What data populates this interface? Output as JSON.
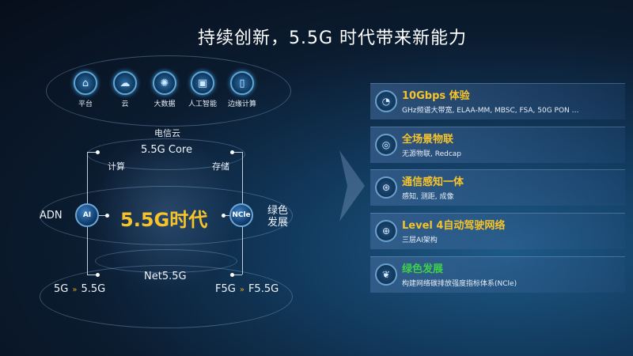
{
  "title": "持续创新，5.5G 时代带来新能力",
  "top_icons": [
    {
      "label": "平台",
      "icon": "platform-icon"
    },
    {
      "label": "云",
      "icon": "cloud-icon"
    },
    {
      "label": "大数据",
      "icon": "big-data-icon"
    },
    {
      "label": "人工智能",
      "icon": "ai-chip-icon"
    },
    {
      "label": "边缘计算",
      "icon": "edge-computing-icon"
    }
  ],
  "diagram": {
    "telecom_cloud": "电信云",
    "core": "5.5G Core",
    "compute": "计算",
    "storage": "存储",
    "adn": "ADN",
    "ai_node": "AI",
    "center": "5.5G时代",
    "ncle_node": "NCle",
    "green": "绿色发展",
    "net": "Net5.5G",
    "left_from": "5G",
    "left_to": "5.5G",
    "right_from": "F5G",
    "right_to": "F5.5G"
  },
  "cards": [
    {
      "title": "10Gbps 体验",
      "sub": "GHz频谱大带宽, ELAA-MM, MBSC, FSA, 50G PON …",
      "icon": "speedometer-icon",
      "color": "#f6c32b"
    },
    {
      "title": "全场景物联",
      "sub": "无源物联, Redcap",
      "icon": "iot-icon",
      "color": "#f6c32b"
    },
    {
      "title": "通信感知一体",
      "sub": "感知, 测距, 成像",
      "icon": "sensing-icon",
      "color": "#f6c32b"
    },
    {
      "title": "Level 4自动驾驶网络",
      "sub": "三层AI架构",
      "icon": "network-globe-icon",
      "color": "#f6c32b"
    },
    {
      "title": "绿色发展",
      "sub": "构建网络碳排放强度指标体系(NCle)",
      "icon": "leaf-icon",
      "color": "#3fd04a"
    }
  ]
}
